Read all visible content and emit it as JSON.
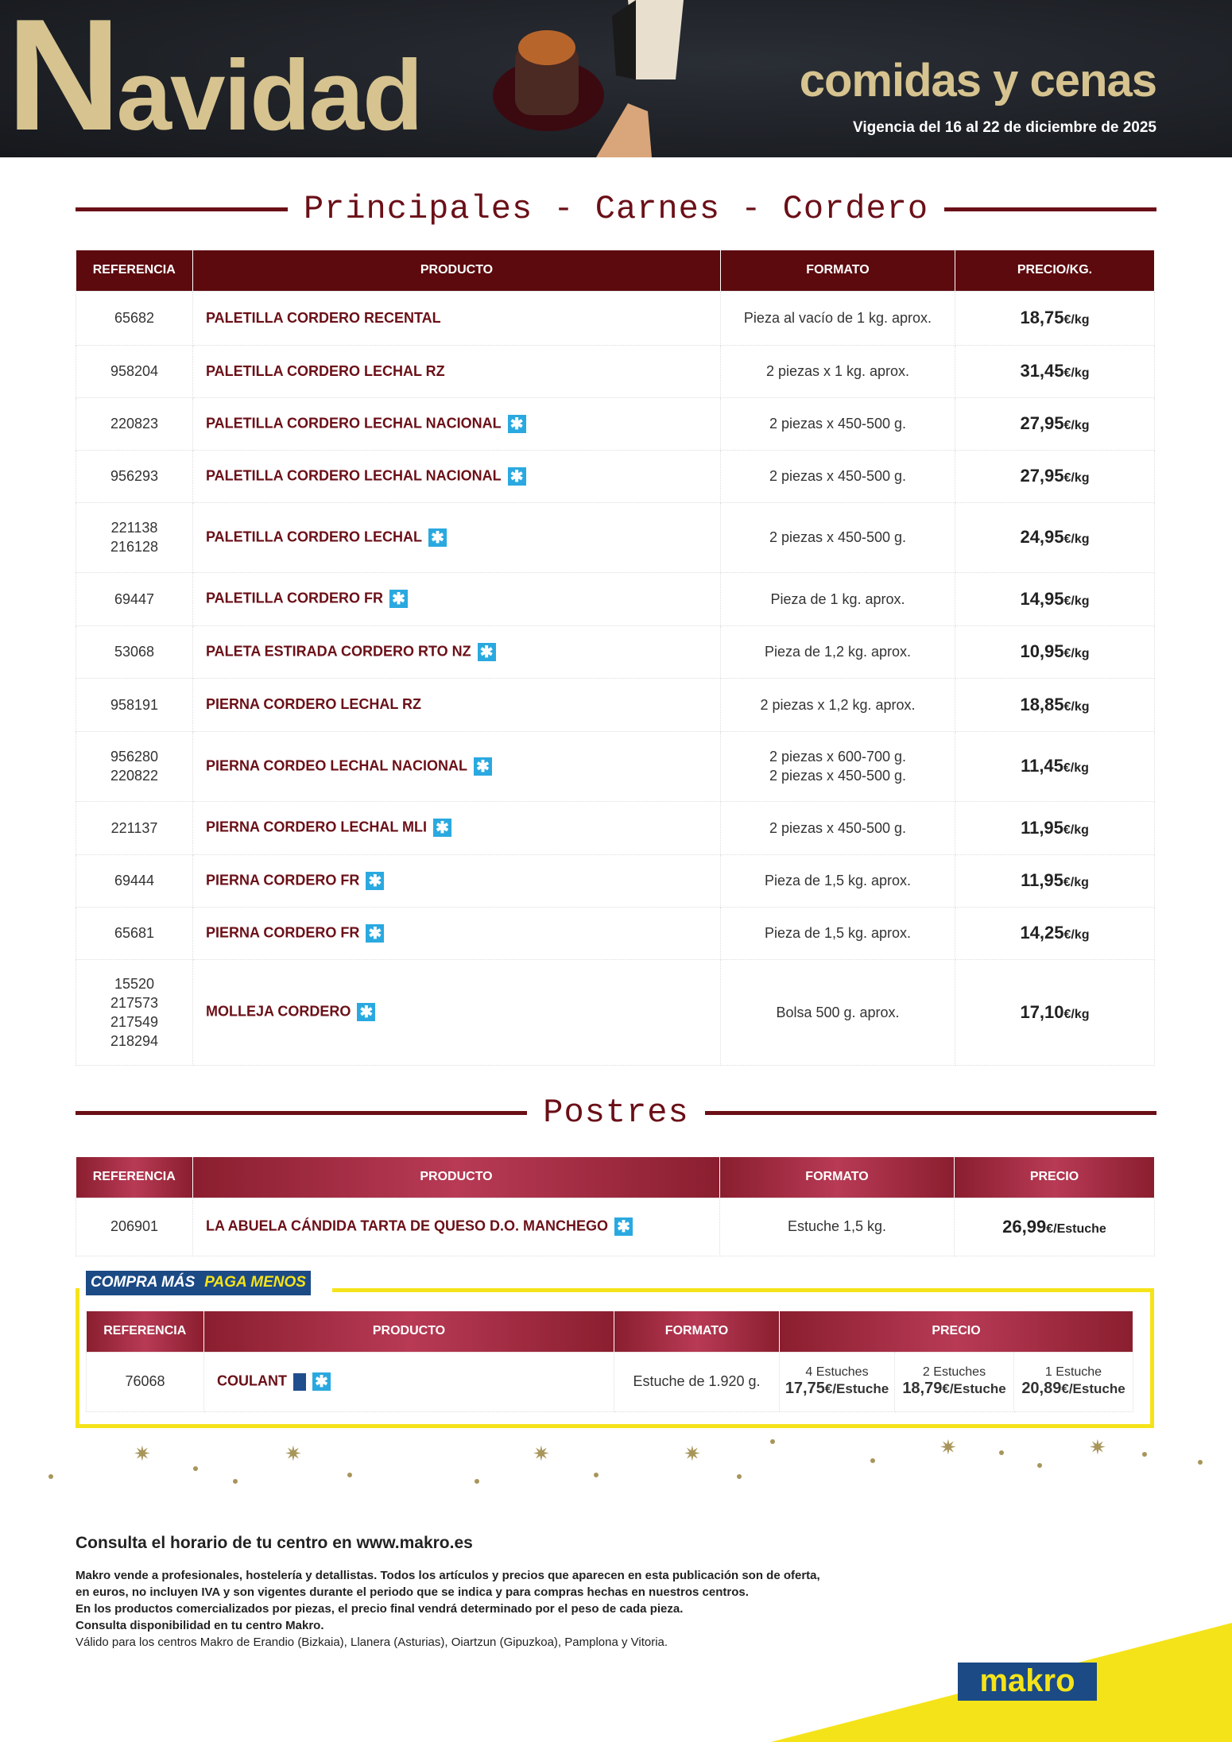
{
  "header": {
    "title_first": "N",
    "title_rest": "avidad",
    "subtitle": "comidas y cenas",
    "validity": "Vigencia del 16 al 22 de diciembre de 2025"
  },
  "section1": {
    "title": "Principales - Carnes - Cordero",
    "columns": [
      "REFERENCIA",
      "PRODUCTO",
      "FORMATO",
      "PRECIO/KG."
    ],
    "rows": [
      {
        "ref": "65682",
        "product": "PALETILLA CORDERO RECENTAL",
        "frozen": false,
        "format": "Pieza al vacío de 1 kg. aprox.",
        "price": "18,75",
        "unit": "€/kg"
      },
      {
        "ref": "958204",
        "product": "PALETILLA CORDERO LECHAL RZ",
        "frozen": false,
        "format": "2 piezas x 1 kg. aprox.",
        "price": "31,45",
        "unit": "€/kg"
      },
      {
        "ref": "220823",
        "product": "PALETILLA CORDERO LECHAL NACIONAL",
        "frozen": true,
        "format": "2 piezas x 450-500 g.",
        "price": "27,95",
        "unit": "€/kg"
      },
      {
        "ref": "956293",
        "product": "PALETILLA CORDERO LECHAL NACIONAL",
        "frozen": true,
        "format": "2 piezas x 450-500 g.",
        "price": "27,95",
        "unit": "€/kg"
      },
      {
        "ref": "221138\n216128",
        "product": "PALETILLA CORDERO LECHAL",
        "frozen": true,
        "format": "2 piezas x 450-500 g.",
        "price": "24,95",
        "unit": "€/kg"
      },
      {
        "ref": "69447",
        "product": "PALETILLA CORDERO FR",
        "frozen": true,
        "format": "Pieza de 1 kg. aprox.",
        "price": "14,95",
        "unit": "€/kg"
      },
      {
        "ref": "53068",
        "product": "PALETA ESTIRADA CORDERO RTO NZ",
        "frozen": true,
        "format": "Pieza de 1,2 kg. aprox.",
        "price": "10,95",
        "unit": "€/kg"
      },
      {
        "ref": "958191",
        "product": "PIERNA CORDERO LECHAL RZ",
        "frozen": false,
        "format": "2 piezas x 1,2 kg. aprox.",
        "price": "18,85",
        "unit": "€/kg"
      },
      {
        "ref": "956280\n220822",
        "product": "PIERNA CORDEO LECHAL NACIONAL",
        "frozen": true,
        "format": "2 piezas x 600-700 g.\n2 piezas x 450-500 g.",
        "price": "11,45",
        "unit": "€/kg"
      },
      {
        "ref": "221137",
        "product": "PIERNA CORDERO LECHAL MLI",
        "frozen": true,
        "format": "2 piezas x 450-500 g.",
        "price": "11,95",
        "unit": "€/kg"
      },
      {
        "ref": "69444",
        "product": "PIERNA CORDERO FR",
        "frozen": true,
        "format": "Pieza de 1,5 kg. aprox.",
        "price": "11,95",
        "unit": "€/kg"
      },
      {
        "ref": "65681",
        "product": "PIERNA CORDERO FR",
        "frozen": true,
        "format": "Pieza de 1,5 kg. aprox.",
        "price": "14,25",
        "unit": "€/kg"
      },
      {
        "ref": "15520\n217573\n217549\n218294",
        "product": "MOLLEJA CORDERO",
        "frozen": true,
        "format": "Bolsa 500 g. aprox.",
        "price": "17,10",
        "unit": "€/kg"
      }
    ]
  },
  "section2": {
    "title": "Postres",
    "columns": [
      "REFERENCIA",
      "PRODUCTO",
      "FORMATO",
      "PRECIO"
    ],
    "rows": [
      {
        "ref": "206901",
        "product": "LA ABUELA CÁNDIDA TARTA DE QUESO D.O. MANCHEGO",
        "frozen": true,
        "format": "Estuche 1,5 kg.",
        "price": "26,99",
        "unit": "€/Estuche"
      }
    ]
  },
  "promo": {
    "badge_a": "COMPRA MÁS",
    "badge_b": "PAGA MENOS",
    "columns": [
      "REFERENCIA",
      "PRODUCTO",
      "FORMATO",
      "PRECIO"
    ],
    "row": {
      "ref": "76068",
      "product": "COULANT",
      "format": "Estuche de 1.920 g.",
      "tiers": [
        {
          "qty": "4 Estuches",
          "price": "17,75",
          "unit": "€/Estuche"
        },
        {
          "qty": "2 Estuches",
          "price": "18,79",
          "unit": "€/Estuche"
        },
        {
          "qty": "1 Estuche",
          "price": "20,89",
          "unit": "€/Estuche"
        }
      ]
    }
  },
  "footer": {
    "heading": "Consulta el horario de tu centro en www.makro.es",
    "lines": [
      "Makro vende a profesionales, hostelería y detallistas. Todos los artículos y precios que aparecen en esta publicación son de oferta,",
      "en euros, no incluyen IVA y son vigentes durante el periodo que se indica y para compras hechas en nuestros centros.",
      "En los productos comercializados por piezas, el precio final vendrá determinado por el peso de cada pieza.",
      "Consulta disponibilidad en tu centro Makro."
    ],
    "last_line": "Válido para los centros Makro de Erandio (Bizkaia), Llanera (Asturias), Oiartzun (Gipuzkoa), Pamplona y Vitoria.",
    "logo": "makro"
  },
  "colors": {
    "maroon": "#5c0a0e",
    "yellow": "#f5e31a",
    "blue": "#1b4a85",
    "frozen": "#2aa9e0",
    "gold": "#d6c38f"
  }
}
